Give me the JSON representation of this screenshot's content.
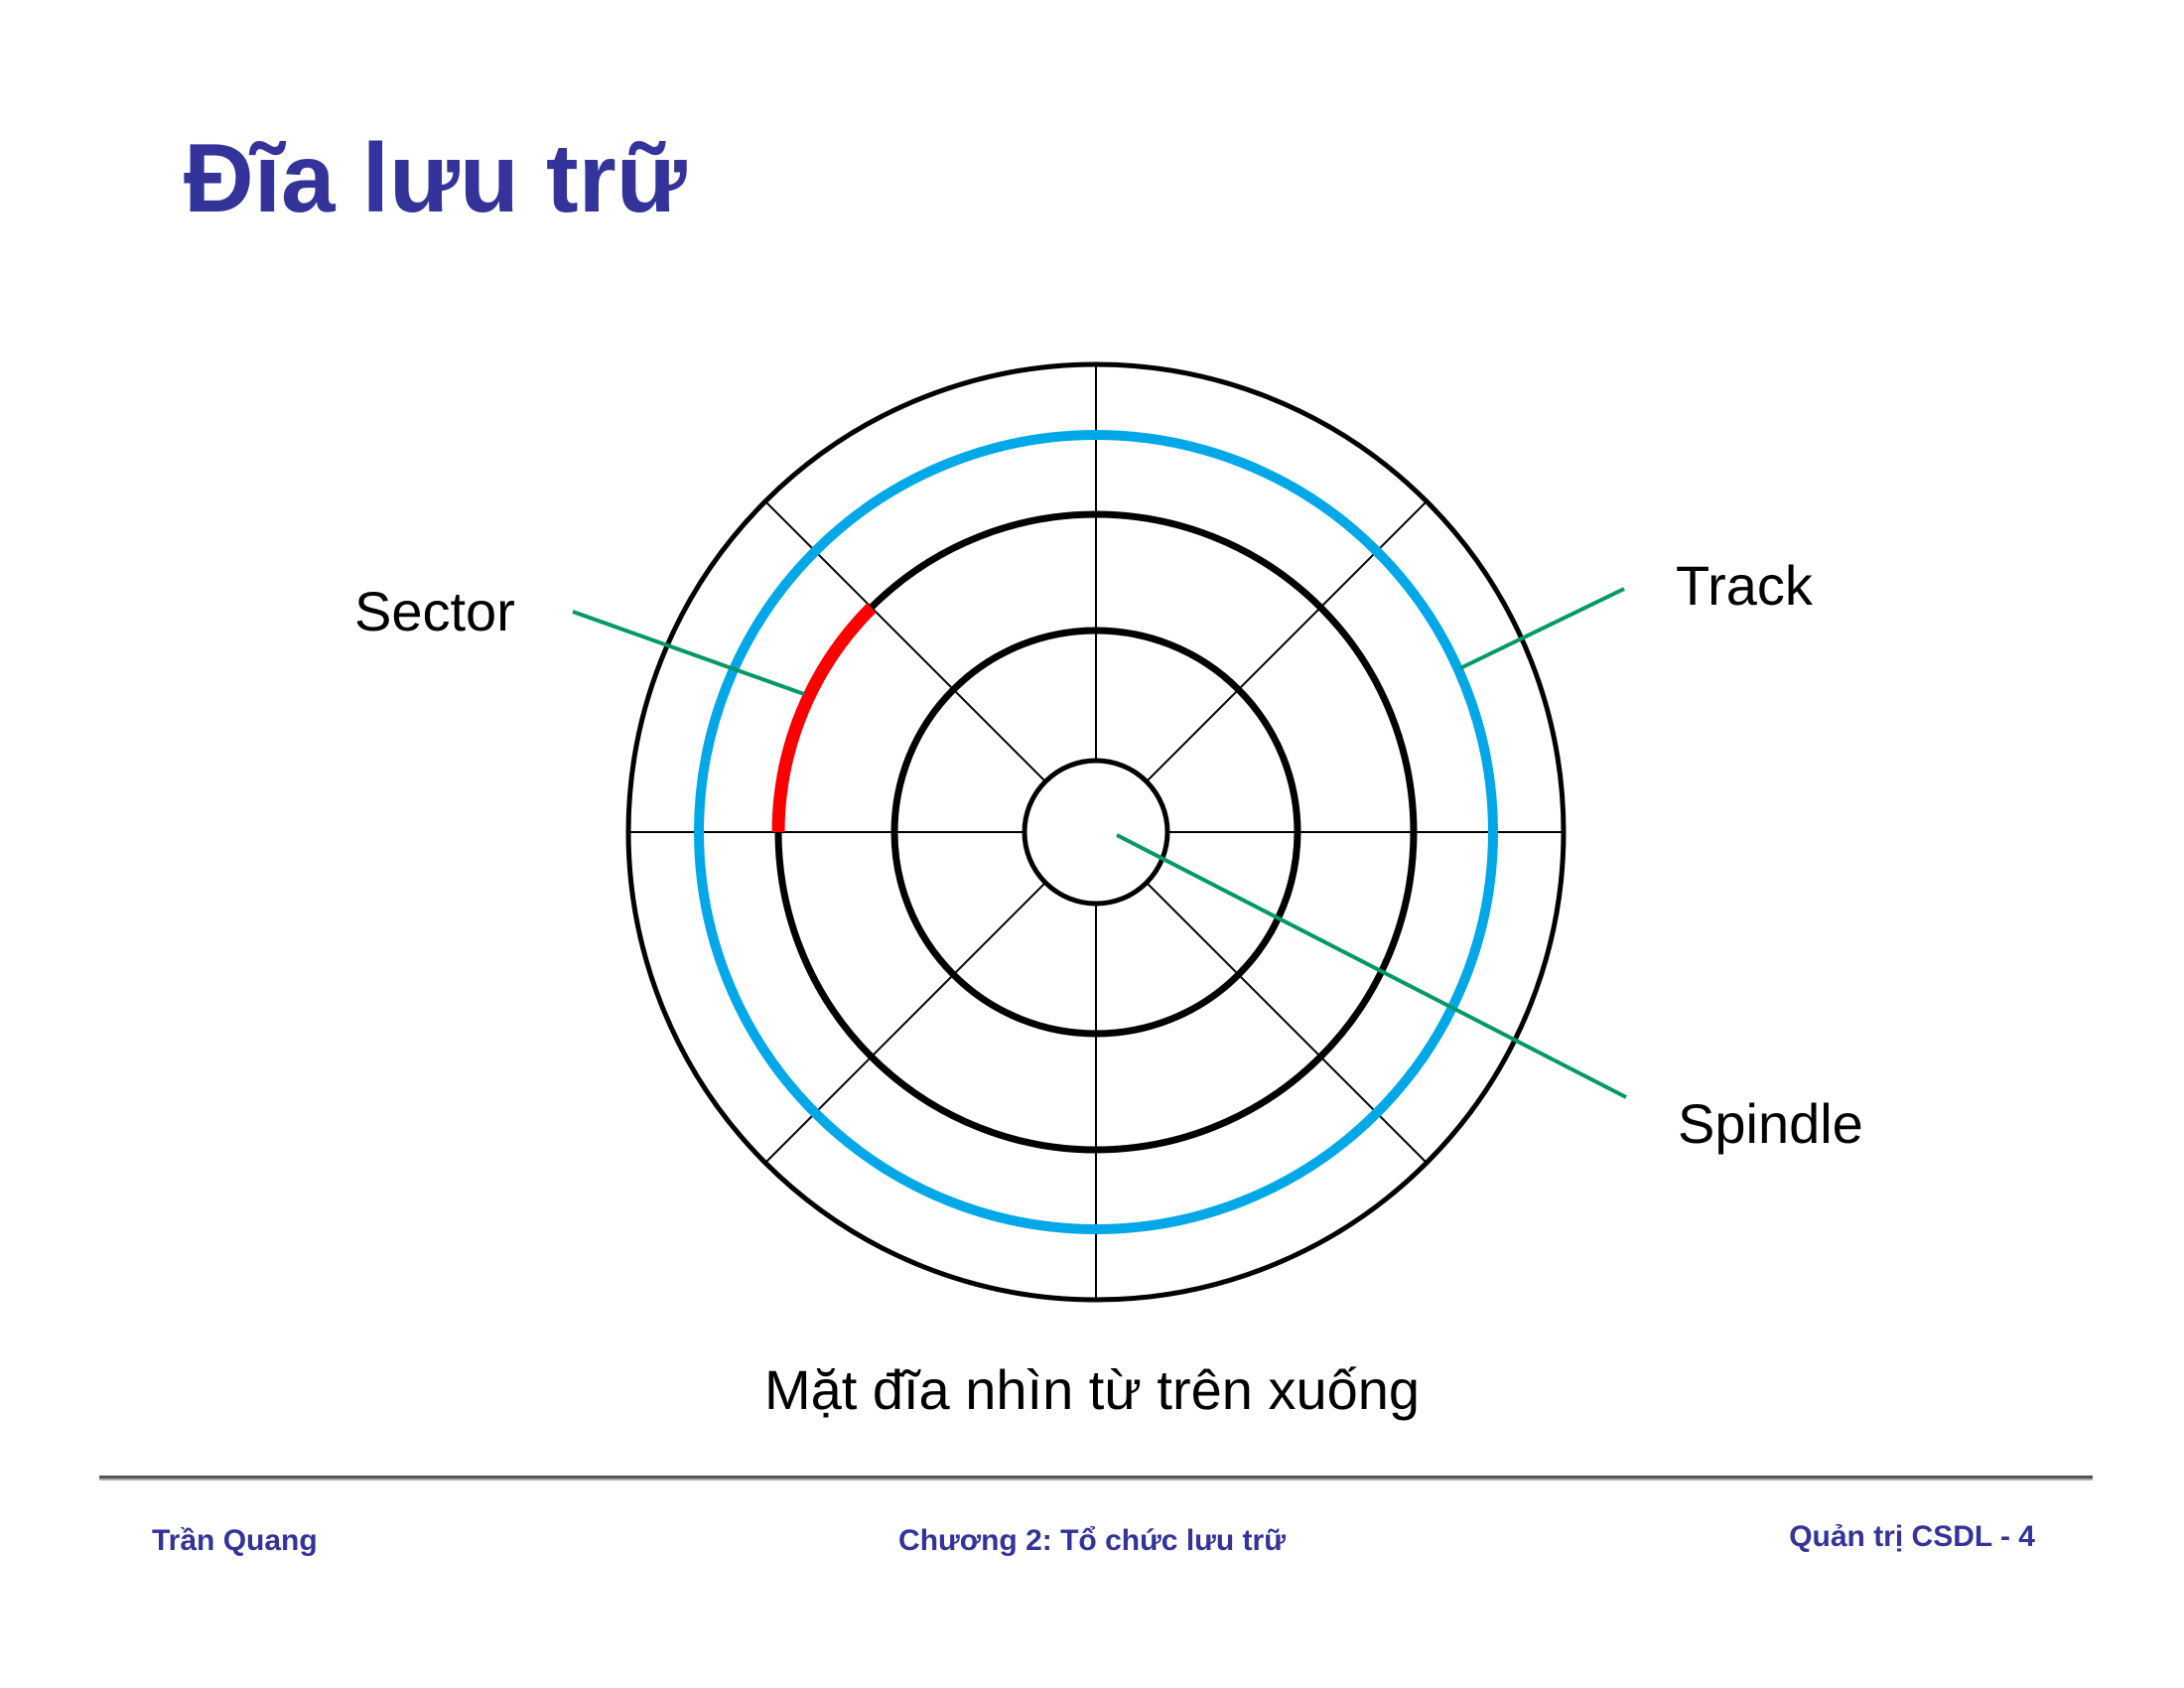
{
  "title": "Đĩa lưu trữ",
  "labels": {
    "sector": "Sector",
    "track": "Track",
    "spindle": "Spindle"
  },
  "caption": "Mặt đĩa nhìn từ trên xuống",
  "footer": {
    "author": "Trần Quang",
    "chapter": "Chương 2: Tổ chức lưu trữ",
    "page": "Quản trị CSDL - 4"
  },
  "colors": {
    "title": "#333399",
    "track": "#00a8e8",
    "sector": "#ff0000",
    "leader": "#009966",
    "outline": "#000000"
  }
}
